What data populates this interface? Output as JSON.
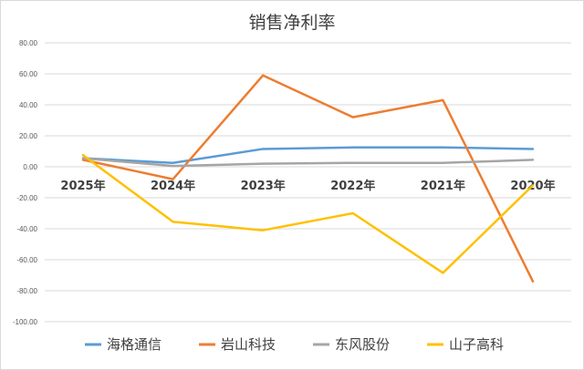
{
  "chart_data": {
    "type": "line",
    "title": "销售净利率",
    "categories": [
      "2025年",
      "2024年",
      "2023年",
      "2022年",
      "2021年",
      "2020年"
    ],
    "ylim": [
      -100,
      80
    ],
    "yticks": [
      "80.00",
      "60.00",
      "40.00",
      "20.00",
      "0.00",
      "-20.00",
      "-40.00",
      "-60.00",
      "-80.00",
      "-100.00"
    ],
    "grid": true,
    "legend_position": "bottom",
    "series": [
      {
        "name": "海格通信",
        "color": "#5B9BD5",
        "values": [
          5.5,
          2.5,
          11.5,
          12.5,
          12.5,
          11.5
        ]
      },
      {
        "name": "岩山科技",
        "color": "#ED7D31",
        "values": [
          4.5,
          -8,
          59,
          32,
          43,
          -74
        ]
      },
      {
        "name": "东风股份",
        "color": "#A5A5A5",
        "values": [
          5.5,
          0.5,
          2,
          2.5,
          2.5,
          4.5
        ]
      },
      {
        "name": "山子高科",
        "color": "#FFC000",
        "values": [
          7.5,
          -35.5,
          -41,
          -30,
          -68.5,
          -12
        ]
      }
    ]
  }
}
